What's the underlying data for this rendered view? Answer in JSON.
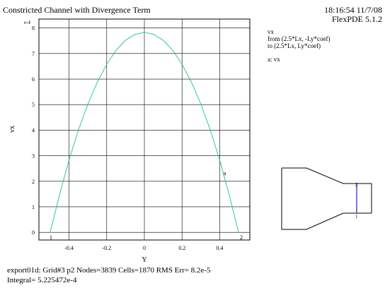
{
  "header": {
    "title": "Constricted Channel with Divergence Term",
    "time": "18:16:54 11/7/08",
    "version": "FlexPDE 5.1.2"
  },
  "legend": {
    "lines": [
      "vx",
      "from (2.5*Lx, -Ly*coef)",
      "to (2.5*Lx, Ly*coef)"
    ],
    "series_label": "a: vx"
  },
  "footer": {
    "line1": "export01d:  Grid#3  p2  Nodes=3839 Cells=1870 RMS Err= 8.2e-5",
    "line2": "Integral=  5.225472e-4"
  },
  "markers": {
    "start": "1",
    "end": "2",
    "curve": "a"
  },
  "colors": {
    "curve": "#19c1a0",
    "grid": "#000000",
    "marker": "#e0304a",
    "profile_line": "#2020d0",
    "legend_series": "#19c1a0"
  },
  "chart_data": {
    "type": "line",
    "title": "Constricted Channel with Divergence Term",
    "xlabel": "Y",
    "ylabel": "vx",
    "y_multiplier": "e-4",
    "xlim": [
      -0.56,
      0.56
    ],
    "ylim": [
      -0.3,
      8.35
    ],
    "x_ticks": [
      -0.4,
      -0.2,
      0,
      0.2,
      0.4
    ],
    "x_tick_labels": [
      "-0.4",
      "-0.2",
      "0",
      "0.2",
      "0.4"
    ],
    "y_ticks": [
      0,
      1,
      2,
      3,
      4,
      5,
      6,
      7,
      8
    ],
    "y_tick_labels": [
      "0",
      "1",
      "2",
      "3",
      "4",
      "5",
      "6",
      "7",
      "8"
    ],
    "grid": true,
    "series": [
      {
        "name": "vx",
        "x": [
          -0.5,
          -0.45,
          -0.4,
          -0.35,
          -0.3,
          -0.25,
          -0.2,
          -0.15,
          -0.1,
          -0.05,
          0,
          0.05,
          0.1,
          0.15,
          0.2,
          0.25,
          0.3,
          0.35,
          0.4,
          0.45,
          0.5
        ],
        "y": [
          0.0,
          1.49,
          2.83,
          4.01,
          5.02,
          5.88,
          6.58,
          7.13,
          7.52,
          7.75,
          7.83,
          7.75,
          7.52,
          7.13,
          6.58,
          5.88,
          5.02,
          4.01,
          2.83,
          1.49,
          0.0
        ]
      }
    ]
  }
}
